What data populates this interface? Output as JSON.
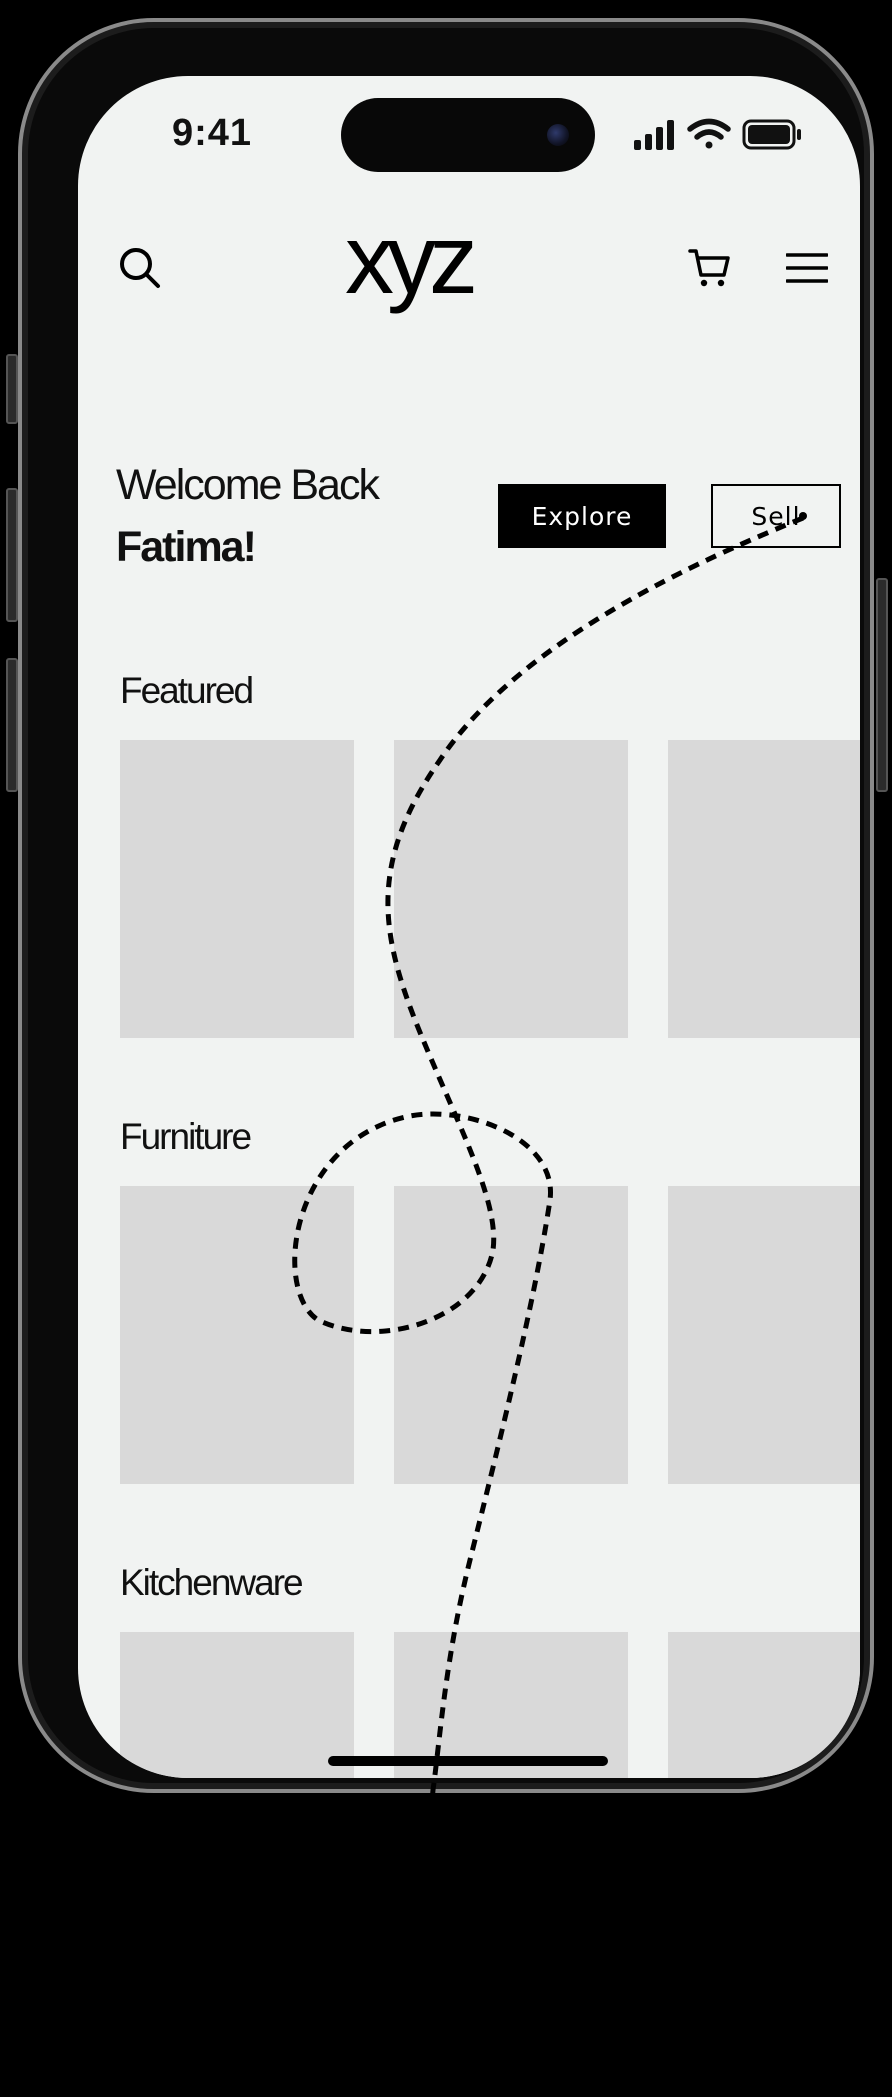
{
  "status_bar": {
    "time": "9:41",
    "icons": [
      "signal-icon",
      "wifi-icon",
      "battery-icon"
    ]
  },
  "header": {
    "logo": "xyz",
    "icons": [
      "search-icon",
      "cart-icon",
      "menu-icon"
    ]
  },
  "welcome": {
    "line1": "Welcome Back",
    "line2": "Fatima!"
  },
  "actions": {
    "explore_label": "Explore",
    "sell_label": "Sell"
  },
  "sections": [
    {
      "title": "Featured",
      "items": 3
    },
    {
      "title": "Furniture",
      "items": 3
    },
    {
      "title": "Kitchenware",
      "items": 3
    }
  ],
  "colors": {
    "screen_bg": "#f1f3f2",
    "card_placeholder": "#d9d9d9",
    "primary": "#000000"
  }
}
